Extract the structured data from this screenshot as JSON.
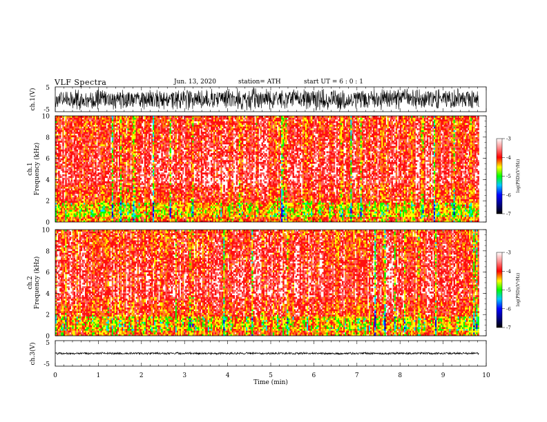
{
  "header": {
    "title": "VLF  Spectra",
    "date": "Jun. 13, 2020",
    "station": "station= ATH",
    "start": "start  UT  =   6  : 0  : 1"
  },
  "chart_data": [
    {
      "type": "line",
      "ylabel": "ch.1(V)",
      "ylim": [
        -5,
        5
      ],
      "yticks": [
        "5",
        "-5"
      ],
      "xlim": [
        0,
        10
      ]
    },
    {
      "type": "heatmap",
      "ylabel_line1": "ch.1",
      "ylabel_line2": "Frequency  (kHz)",
      "ylim": [
        0,
        10
      ],
      "yticks": [
        "0",
        "2",
        "4",
        "6",
        "8",
        "10"
      ],
      "xlim": [
        0,
        10
      ],
      "data_end_min": 9.83,
      "colorbar": {
        "label": "log(PSD)(V²/Hz)",
        "ticks": [
          "-3",
          "-4",
          "-5",
          "-6",
          "-7"
        ],
        "range": [
          -7,
          -3
        ]
      }
    },
    {
      "type": "heatmap",
      "ylabel_line1": "ch.2",
      "ylabel_line2": "Frequency  (kHz)",
      "ylim": [
        0,
        10
      ],
      "yticks": [
        "0",
        "2",
        "4",
        "6",
        "8",
        "10"
      ],
      "xlim": [
        0,
        10
      ],
      "data_end_min": 9.83,
      "colorbar": {
        "label": "log(PSD)(V²/Hz)",
        "ticks": [
          "-3",
          "-4",
          "-5",
          "-6",
          "-7"
        ],
        "range": [
          -7,
          -3
        ]
      }
    },
    {
      "type": "line",
      "ylabel": "ch.3(V)",
      "ylim": [
        -5,
        5
      ],
      "yticks": [
        "5",
        "-5"
      ],
      "xlim": [
        0,
        10
      ],
      "xlabel": "Time  (min)",
      "xticks": [
        "0",
        "1",
        "2",
        "3",
        "4",
        "5",
        "6",
        "7",
        "8",
        "9",
        "10"
      ]
    }
  ]
}
